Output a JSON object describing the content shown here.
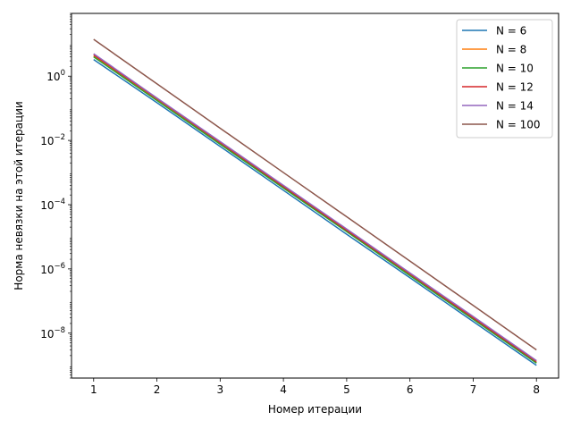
{
  "chart_data": {
    "type": "line",
    "title": "",
    "xlabel": "Номер итерации",
    "ylabel": "Норма невязки на этой итерации",
    "yscale": "log",
    "xlim": [
      0.65,
      8.35
    ],
    "ylim": [
      4e-10,
      90
    ],
    "grid": false,
    "legend_position": "top-right",
    "x_ticks": [
      1,
      2,
      3,
      4,
      5,
      6,
      7,
      8
    ],
    "y_ticks": [
      {
        "value": 1,
        "base": "10",
        "exp": "0"
      },
      {
        "value": 0.01,
        "base": "10",
        "exp": "−2"
      },
      {
        "value": 0.0001,
        "base": "10",
        "exp": "−4"
      },
      {
        "value": 1e-06,
        "base": "10",
        "exp": "−6"
      },
      {
        "value": 1e-08,
        "base": "10",
        "exp": "−8"
      }
    ],
    "x": [
      1,
      2,
      3,
      4,
      5,
      6,
      7,
      8
    ],
    "series": [
      {
        "name": "N = 6",
        "color": "#1f77b4",
        "values": [
          3.3,
          0.15,
          0.0065,
          0.00028,
          1.2e-05,
          5.3e-07,
          2.3e-08,
          1e-09
        ]
      },
      {
        "name": "N = 8",
        "color": "#ff7f0e",
        "values": [
          4.2,
          0.18,
          0.0078,
          0.00034,
          1.5e-05,
          6.4e-07,
          2.8e-08,
          1.2e-09
        ]
      },
      {
        "name": "N = 10",
        "color": "#2ca02c",
        "values": [
          4.0,
          0.175,
          0.0076,
          0.00033,
          1.45e-05,
          6.2e-07,
          2.7e-08,
          1.17e-09
        ]
      },
      {
        "name": "N = 12",
        "color": "#d62728",
        "values": [
          4.6,
          0.2,
          0.0086,
          0.00037,
          1.6e-05,
          7e-07,
          3e-08,
          1.3e-09
        ]
      },
      {
        "name": "N = 14",
        "color": "#9467bd",
        "values": [
          5.0,
          0.21,
          0.0092,
          0.0004,
          1.75e-05,
          7.5e-07,
          3.3e-08,
          1.4e-09
        ]
      },
      {
        "name": "N = 100",
        "color": "#8c564b",
        "values": [
          14.0,
          0.58,
          0.024,
          0.001,
          4.2e-05,
          1.75e-06,
          7.3e-08,
          3e-09
        ]
      }
    ]
  }
}
